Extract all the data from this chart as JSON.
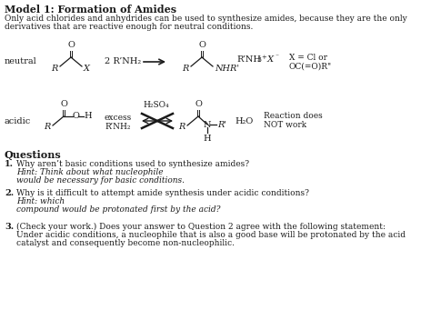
{
  "title": "Model 1: Formation of Amides",
  "subtitle1": "Only acid chlorides and anhydrides can be used to synthesize amides, because they are the only",
  "subtitle2": "derivatives that are reactive enough for neutral conditions.",
  "bg_color": "#ffffff",
  "text_color": "#1a1a1a",
  "figsize": [
    4.74,
    3.63
  ],
  "dpi": 100
}
